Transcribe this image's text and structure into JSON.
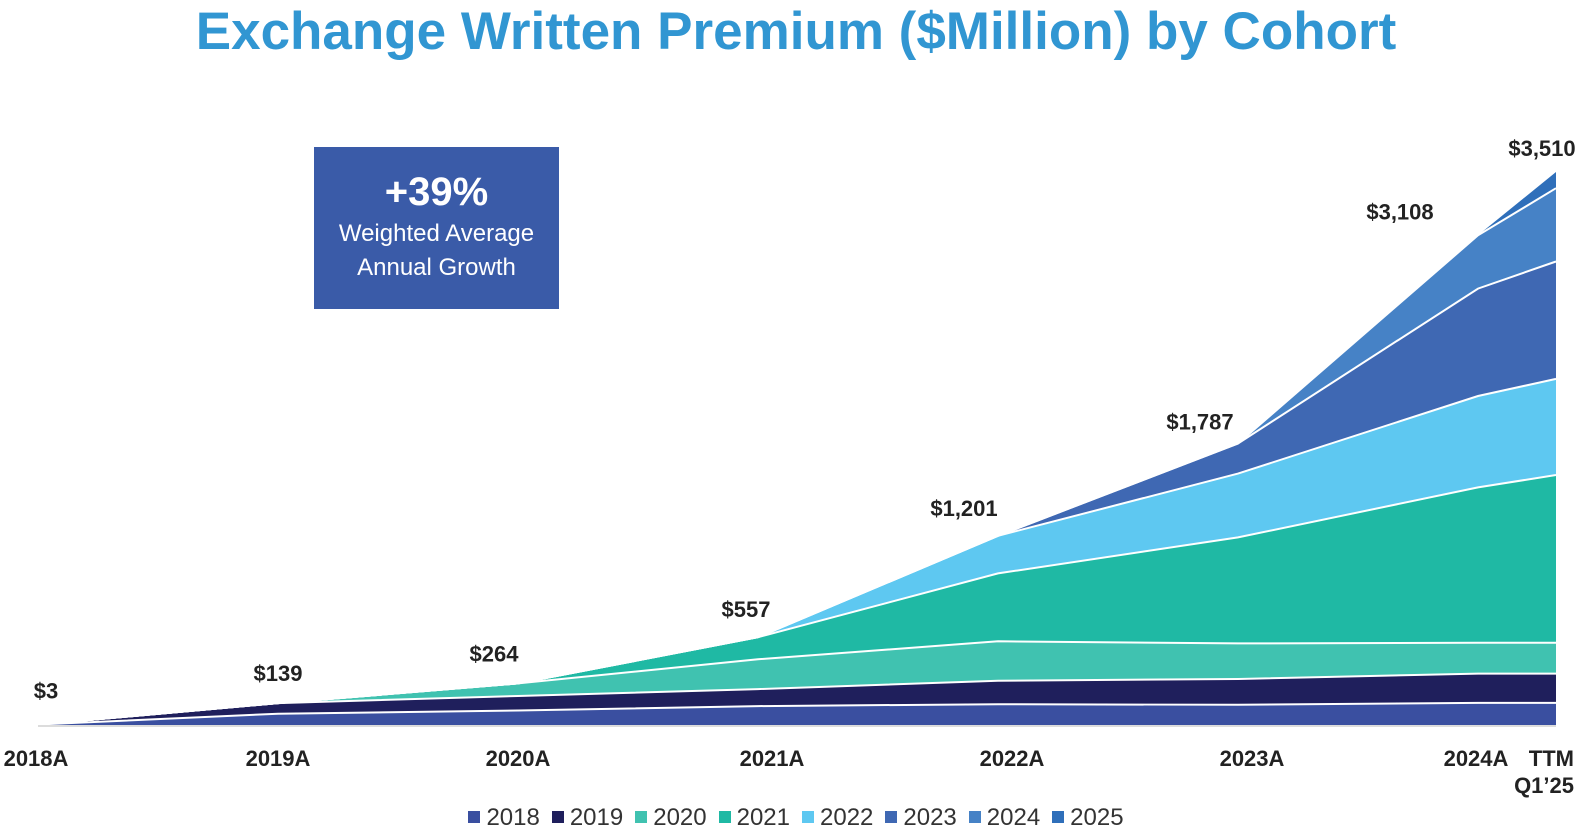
{
  "chart_data": {
    "type": "area",
    "stacked": true,
    "title": "Exchange Written Premium ($Million) by Cohort",
    "categories": [
      "2018A",
      "2019A",
      "2020A",
      "2021A",
      "2022A",
      "2023A",
      "2024A",
      "TTM\nQ1’25"
    ],
    "totals": [
      3,
      139,
      264,
      557,
      1201,
      1787,
      3108,
      3510
    ],
    "total_labels": [
      "$3",
      "$139",
      "$264",
      "$557",
      "$1,201",
      "$1,787",
      "$3,108",
      "$3,510"
    ],
    "series": [
      {
        "name": "2018",
        "color": "#3a4fa0",
        "values": [
          3,
          72,
          92,
          120,
          132,
          128,
          140,
          140
        ]
      },
      {
        "name": "2019",
        "color": "#1f1f5c",
        "values": [
          0,
          67,
          92,
          108,
          149,
          164,
          186,
          186
        ]
      },
      {
        "name": "2020",
        "color": "#40c2b0",
        "values": [
          0,
          0,
          80,
          189,
          250,
          226,
          196,
          196
        ]
      },
      {
        "name": "2021",
        "color": "#1fb9a4",
        "values": [
          0,
          0,
          0,
          140,
          431,
          673,
          986,
          1065
        ]
      },
      {
        "name": "2022",
        "color": "#5ec8f1",
        "values": [
          0,
          0,
          0,
          0,
          239,
          405,
          580,
          610
        ]
      },
      {
        "name": "2023",
        "color": "#3f68b3",
        "values": [
          0,
          0,
          0,
          0,
          0,
          191,
          682,
          745
        ]
      },
      {
        "name": "2024",
        "color": "#4682c6",
        "values": [
          0,
          0,
          0,
          0,
          0,
          0,
          338,
          465
        ]
      },
      {
        "name": "2025",
        "color": "#2f6fba",
        "values": [
          0,
          0,
          0,
          0,
          0,
          0,
          0,
          103
        ]
      }
    ],
    "ylim": [
      0,
      3510
    ],
    "grid": false,
    "legend": "bottom"
  },
  "annotation": {
    "value": "+39%",
    "line1": "Weighted Average",
    "line2": "Annual Growth"
  }
}
